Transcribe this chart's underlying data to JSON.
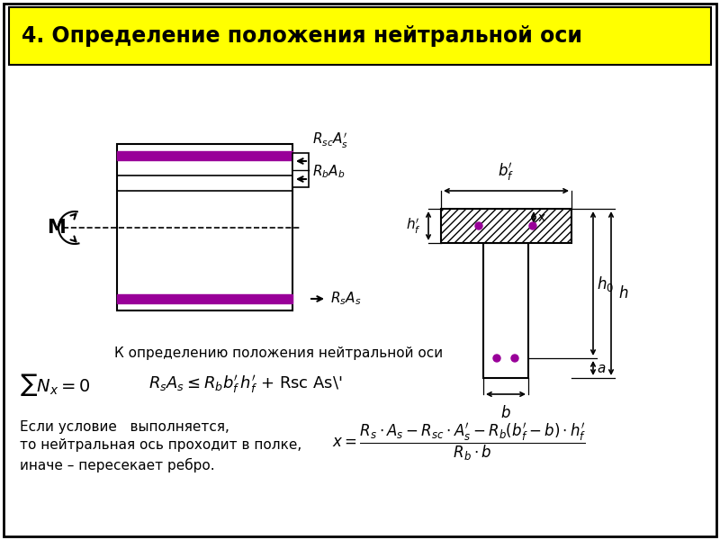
{
  "title": "4. Определение положения нейтральной оси",
  "caption": "К определению положения нейтральной оси",
  "cond2": "Если условие   выполняется,",
  "cond3": "то нейтральная ось проходит в полке,",
  "cond4": "иначе – пересекает ребро.",
  "purple": "#990099",
  "yellow": "#ffff00"
}
